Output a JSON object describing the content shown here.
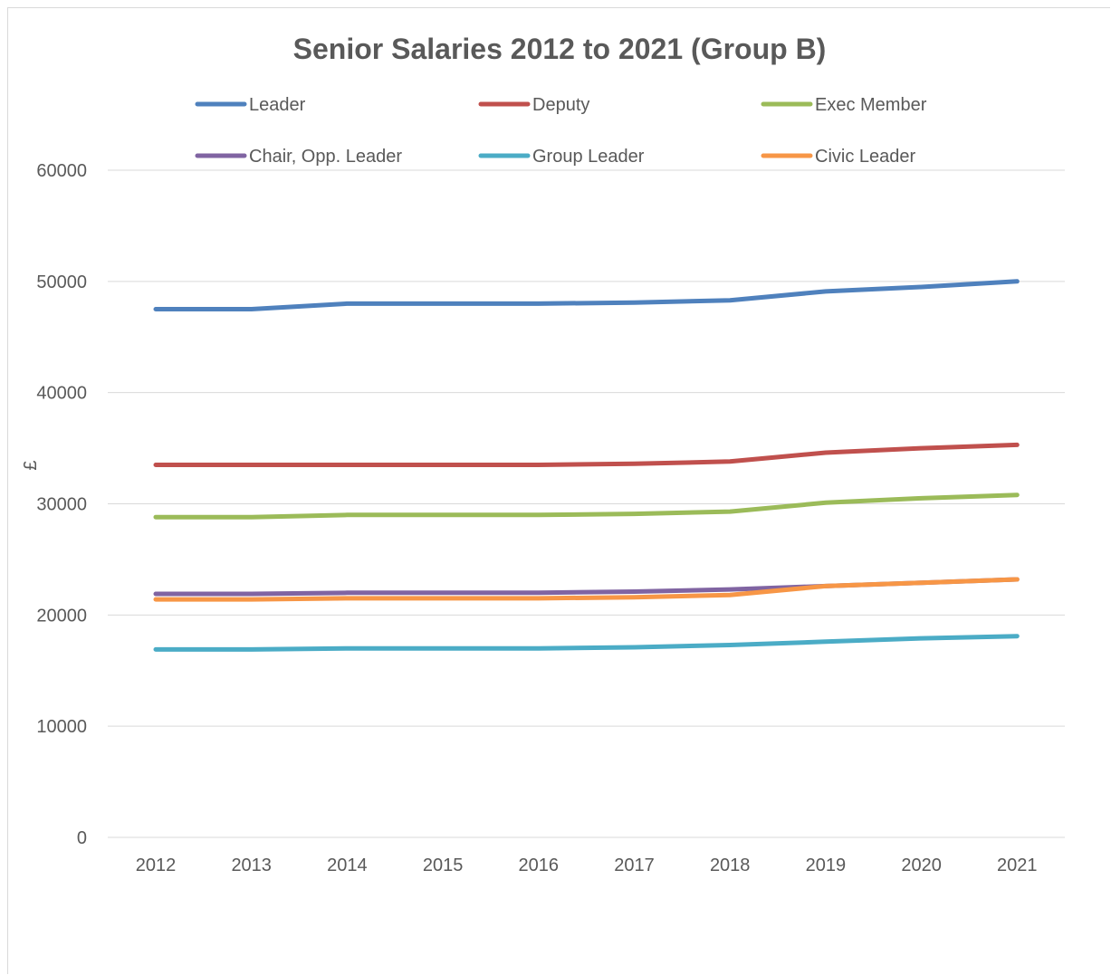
{
  "chart_data": {
    "type": "line",
    "title": "Senior Salaries 2012 to 2021 (Group B)",
    "xlabel": "",
    "ylabel": "£",
    "ylim": [
      0,
      60000
    ],
    "yticks": [
      "0",
      "10000",
      "20000",
      "30000",
      "40000",
      "50000",
      "60000"
    ],
    "grid": true,
    "legend_position": "top",
    "categories": [
      "2012",
      "2013",
      "2014",
      "2015",
      "2016",
      "2017",
      "2018",
      "2019",
      "2020",
      "2021"
    ],
    "series": [
      {
        "name": "Leader",
        "color": "#4f81bd",
        "values": [
          47500,
          47500,
          48000,
          48000,
          48000,
          48100,
          48300,
          49100,
          49500,
          50000
        ]
      },
      {
        "name": "Deputy",
        "color": "#c0504d",
        "values": [
          33500,
          33500,
          33500,
          33500,
          33500,
          33600,
          33800,
          34600,
          35000,
          35300
        ]
      },
      {
        "name": "Exec Member",
        "color": "#9bbb59",
        "values": [
          28800,
          28800,
          29000,
          29000,
          29000,
          29100,
          29300,
          30100,
          30500,
          30800
        ]
      },
      {
        "name": "Chair, Opp. Leader",
        "color": "#8064a2",
        "values": [
          21900,
          21900,
          22000,
          22000,
          22000,
          22100,
          22300,
          22600,
          22900,
          23200
        ]
      },
      {
        "name": "Group Leader",
        "color": "#4bacc6",
        "values": [
          16900,
          16900,
          17000,
          17000,
          17000,
          17100,
          17300,
          17600,
          17900,
          18100
        ]
      },
      {
        "name": "Civic Leader",
        "color": "#f79646",
        "values": [
          21400,
          21400,
          21500,
          21500,
          21500,
          21600,
          21800,
          22600,
          22900,
          23200
        ]
      }
    ]
  }
}
